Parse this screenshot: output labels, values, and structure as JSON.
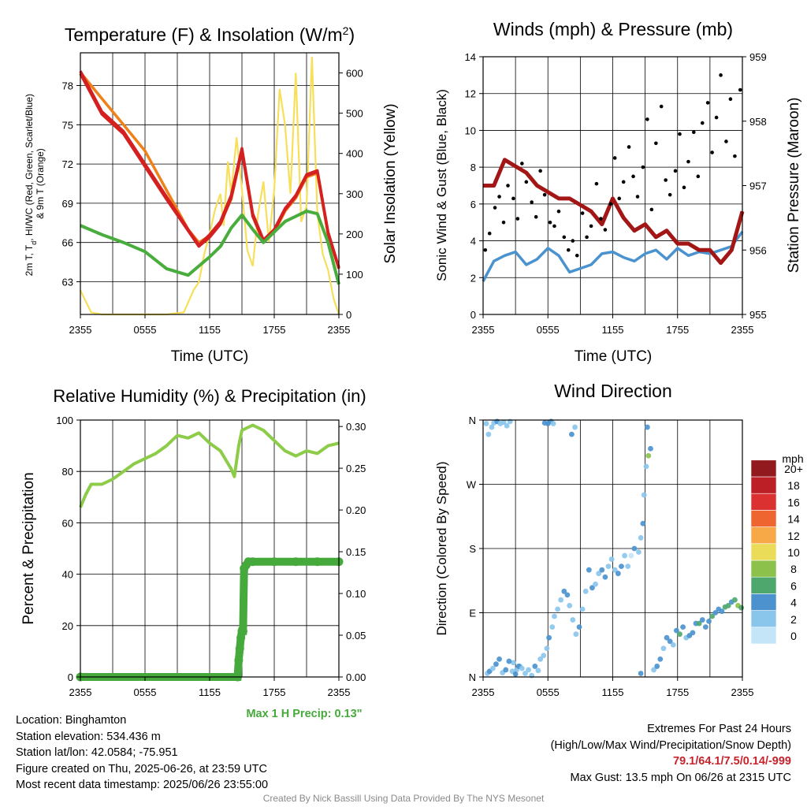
{
  "colors": {
    "temp": "#d42020",
    "heat_index": "#f08018",
    "dewpoint": "#48ad3c",
    "insolation": "#f7df5a",
    "wind": "#4a93cf",
    "gust": "#000000",
    "pressure": "#a31616",
    "rh": "#8ccc48",
    "precip": "#45a93c",
    "extremes": "#c8232c"
  },
  "info": {
    "location": "Location: Binghamton",
    "elevation": "Station elevation: 534.436 m",
    "latlon": "Station lat/lon: 42.0584; -75.951",
    "created": "Figure created on Thu, 2025-06-26, at 23:59 UTC",
    "recent": "Most recent data timestamp: 2025/06/26 23:55:00"
  },
  "extremes": {
    "title": "Extremes For Past 24 Hours",
    "subtitle": "(High/Low/Max Wind/Precipitation/Snow Depth)",
    "values": "79.1/64.1/7.5/0.14/-999",
    "max_gust": "Max Gust: 13.5 mph On 06/26 at 2315 UTC"
  },
  "credit": "Created By Nick Bassill Using Data Provided By The NYS Mesonet",
  "precip_note": "Max 1 H Precip: 0.13\"",
  "chart_data": [
    {
      "type": "line",
      "title": "Temperature (F) & Insolation (W/m2)",
      "xlabel": "Time (UTC)",
      "ylabel": "2m T, Td, HI/WC (Red, Green, Scarlet/Blue) & 9m T (Orange)",
      "y2label": "Solar Insolation (Yellow)",
      "xticks": [
        "2355",
        "0555",
        "1155",
        "1755",
        "2355"
      ],
      "x_hours": [
        0,
        2,
        4,
        6,
        8,
        10,
        11,
        12,
        13,
        14,
        15,
        16,
        17,
        18,
        19,
        20,
        21,
        22,
        23,
        24
      ],
      "ylim": [
        60.5,
        80.5
      ],
      "yticks": [
        63,
        66,
        69,
        72,
        75,
        78
      ],
      "y2lim": [
        0,
        650
      ],
      "y2ticks": [
        0,
        100,
        200,
        300,
        400,
        500,
        600
      ],
      "series": [
        {
          "name": "2m T",
          "values": [
            79.1,
            76.0,
            74.5,
            72.0,
            69.5,
            67.0,
            65.8,
            66.6,
            67.6,
            69.6,
            73.2,
            68.2,
            66.2,
            67.0,
            68.6,
            69.6,
            71.2,
            71.5,
            66.8,
            64.1
          ]
        },
        {
          "name": "9m T",
          "values": [
            79.0,
            77.0,
            75.0,
            73.0,
            70.0,
            67.0,
            66.0,
            66.5,
            67.5,
            69.3,
            73.0,
            68.0,
            66.0,
            66.8,
            68.4,
            69.4,
            71.0,
            71.3,
            66.6,
            64.0
          ]
        },
        {
          "name": "Heat Index",
          "values": [
            78.9,
            75.8,
            74.3,
            71.8,
            69.3,
            66.9,
            65.7,
            66.4,
            67.4,
            69.4,
            73.0,
            68.0,
            66.1,
            66.9,
            68.5,
            69.5,
            71.1,
            71.4,
            66.7,
            64.0
          ]
        },
        {
          "name": "Dewpoint",
          "values": [
            67.3,
            66.6,
            66.0,
            65.3,
            64.0,
            63.5,
            64.2,
            64.9,
            65.7,
            67.1,
            68.1,
            67.0,
            66.0,
            66.8,
            67.6,
            68.0,
            68.4,
            68.2,
            66.0,
            62.8
          ]
        }
      ],
      "insolation": {
        "x_hours": [
          0,
          1,
          2,
          4,
          8,
          9.6,
          10.5,
          11,
          11.5,
          12,
          12.5,
          13,
          13.3,
          13.7,
          14,
          14.5,
          15,
          15.5,
          16,
          16.5,
          17,
          17.5,
          18,
          18.5,
          19,
          19.5,
          20,
          20.5,
          21,
          21.5,
          22,
          22.5,
          23,
          23.5,
          24
        ],
        "values": [
          60,
          5,
          0,
          0,
          0,
          5,
          60,
          80,
          150,
          200,
          260,
          300,
          220,
          380,
          300,
          440,
          310,
          160,
          120,
          250,
          330,
          180,
          310,
          560,
          470,
          300,
          600,
          230,
          270,
          640,
          250,
          150,
          110,
          40,
          0
        ]
      }
    },
    {
      "type": "line",
      "title": "Winds (mph) & Pressure (mb)",
      "xlabel": "Time (UTC)",
      "ylabel": "Sonic Wind & Gust (Blue, Black)",
      "y2label": "Station Pressure (Maroon)",
      "xticks": [
        "2355",
        "0555",
        "1155",
        "1755",
        "2355"
      ],
      "ylim": [
        0,
        14
      ],
      "yticks": [
        0,
        2,
        4,
        6,
        8,
        10,
        12,
        14
      ],
      "y2lim": [
        955,
        959
      ],
      "y2ticks": [
        955,
        956,
        957,
        958,
        959
      ],
      "x_hours": [
        0,
        1,
        2,
        3,
        4,
        5,
        6,
        7,
        8,
        9,
        10,
        11,
        12,
        13,
        14,
        15,
        16,
        17,
        18,
        19,
        20,
        21,
        22,
        23,
        24
      ],
      "series": [
        {
          "name": "Sonic Wind",
          "values": [
            1.8,
            2.9,
            3.2,
            3.4,
            2.7,
            3.0,
            3.6,
            3.2,
            2.3,
            2.5,
            2.7,
            3.3,
            3.4,
            3.1,
            2.9,
            3.3,
            3.5,
            3.0,
            3.6,
            3.2,
            3.4,
            3.3,
            3.5,
            3.7,
            4.5
          ]
        },
        {
          "name": "Station Pressure",
          "values": [
            957.0,
            957.0,
            957.4,
            957.3,
            957.2,
            957.0,
            956.9,
            956.8,
            956.8,
            956.7,
            956.6,
            956.4,
            956.8,
            956.5,
            956.3,
            956.4,
            956.2,
            956.3,
            956.1,
            956.1,
            956.0,
            956.0,
            955.8,
            956.0,
            956.6
          ]
        }
      ],
      "gusts": {
        "x_hours": [
          0.2,
          0.6,
          1.1,
          1.5,
          1.9,
          2.3,
          2.8,
          3.2,
          3.6,
          4.0,
          4.5,
          4.9,
          5.3,
          5.7,
          6.2,
          6.6,
          7.0,
          7.5,
          7.9,
          8.3,
          8.7,
          9.2,
          9.6,
          10.0,
          10.5,
          10.9,
          11.3,
          11.8,
          12.2,
          12.6,
          13.0,
          13.5,
          13.9,
          14.3,
          14.8,
          15.2,
          15.6,
          16.0,
          16.5,
          16.9,
          17.3,
          17.8,
          18.2,
          18.6,
          19.0,
          19.5,
          19.9,
          20.3,
          20.8,
          21.2,
          21.6,
          22.0,
          22.5,
          22.9,
          23.3,
          23.8
        ],
        "values": [
          3.5,
          4.4,
          5.8,
          6.4,
          5.0,
          7.0,
          6.3,
          5.2,
          8.2,
          7.2,
          6.1,
          5.3,
          7.8,
          6.5,
          5.0,
          4.8,
          5.6,
          4.2,
          3.5,
          4.0,
          3.2,
          5.5,
          4.2,
          4.8,
          7.1,
          5.2,
          4.6,
          6.0,
          8.5,
          6.3,
          7.2,
          9.1,
          7.5,
          6.4,
          8.0,
          10.6,
          5.7,
          9.3,
          11.3,
          7.3,
          6.5,
          7.8,
          9.8,
          6.9,
          8.3,
          9.9,
          7.5,
          10.4,
          11.5,
          8.8,
          10.7,
          13.0,
          9.4,
          11.7,
          8.6,
          12.2
        ]
      }
    },
    {
      "type": "line",
      "title": "Relative Humidity (%) & Precipitation (in)",
      "xlabel": "",
      "ylabel": "Percent & Precipitation",
      "xticks": [
        "2355",
        "0555",
        "1155",
        "1755",
        "2355"
      ],
      "ylim": [
        0,
        100
      ],
      "yticks": [
        0,
        20,
        40,
        60,
        80,
        100
      ],
      "y2lim": [
        0,
        0.3077
      ],
      "y2ticks": [
        0.0,
        0.05,
        0.1,
        0.15,
        0.2,
        0.25,
        0.3
      ],
      "series": [
        {
          "name": "Relative Humidity",
          "x_hours": [
            0,
            0.5,
            1,
            2,
            3,
            4,
            5,
            6,
            7,
            8,
            9,
            10,
            11,
            12,
            13,
            14,
            14.3,
            14.7,
            15,
            16,
            17,
            18,
            19,
            20,
            21,
            22,
            23,
            24
          ],
          "values": [
            66,
            71,
            75,
            75,
            77,
            80,
            83,
            85,
            87,
            90,
            94,
            93,
            95,
            91,
            88,
            81,
            78,
            90,
            96,
            98,
            96,
            92,
            88,
            86,
            88,
            87,
            90,
            91
          ]
        },
        {
          "name": "Precipitation",
          "x_hours": [
            0,
            14.6,
            14.7,
            14.8,
            14.9,
            15.0,
            15.1,
            15.2,
            15.4,
            15.6,
            16,
            18,
            20,
            22,
            24
          ],
          "values": [
            0.0,
            0.0,
            0.02,
            0.034,
            0.047,
            0.055,
            0.055,
            0.13,
            0.134,
            0.138,
            0.138,
            0.138,
            0.138,
            0.138,
            0.138
          ]
        }
      ]
    },
    {
      "type": "scatter",
      "title": "Wind Direction",
      "ylabel": "Direction (Colored By Speed)",
      "xticks": [
        "2355",
        "0555",
        "1155",
        "1755",
        "2355"
      ],
      "yticks": [
        "N",
        "E",
        "S",
        "W",
        "N"
      ],
      "ylim": [
        0,
        360
      ],
      "legend_title": "mph",
      "legend_labels": [
        "0",
        "2",
        "4",
        "6",
        "8",
        "10",
        "12",
        "14",
        "16",
        "18",
        "20+"
      ],
      "legend_colors": [
        "#c4e5f7",
        "#8ac6ec",
        "#4b92cf",
        "#4ea86e",
        "#8cc24c",
        "#eadc58",
        "#f7a847",
        "#ee6530",
        "#dc3131",
        "#bc1f26",
        "#921a1e"
      ],
      "points": {
        "x_hours": [
          0.3,
          0.5,
          0.8,
          1.0,
          1.3,
          1.6,
          1.9,
          2.2,
          2.5,
          2.8,
          3.1,
          3.4,
          0.4,
          0.6,
          0.9,
          1.2,
          1.5,
          1.8,
          2.1,
          2.4,
          2.7,
          3.0,
          3.3,
          3.6,
          3.9,
          4.2,
          4.5,
          4.8,
          5.1,
          5.3,
          5.6,
          5.9,
          6.1,
          6.4,
          6.6,
          6.9,
          7.2,
          7.5,
          7.8,
          8.0,
          8.3,
          8.6,
          8.9,
          9.2,
          9.5,
          9.8,
          10.1,
          10.4,
          10.7,
          11.0,
          11.3,
          11.6,
          11.9,
          12.2,
          12.5,
          12.8,
          13.1,
          13.4,
          13.7,
          14.0,
          14.4,
          14.6,
          14.8,
          14.9,
          15.1,
          15.3,
          15.5,
          15.8,
          16.1,
          16.4,
          16.7,
          17.0,
          17.3,
          17.6,
          17.9,
          18.2,
          18.5,
          18.8,
          19.1,
          19.4,
          19.7,
          20.0,
          20.3,
          20.6,
          20.9,
          21.2,
          21.5,
          21.8,
          22.1,
          22.4,
          22.7,
          23.0,
          23.3,
          23.6,
          23.9,
          5.7,
          6.0,
          6.3,
          6.5,
          8.2,
          8.5,
          14.6,
          15.2
        ],
        "values": [
          355,
          340,
          350,
          356,
          358,
          355,
          357,
          352,
          358,
          20,
          10,
          15,
          5,
          8,
          12,
          18,
          25,
          6,
          10,
          22,
          8,
          4,
          15,
          12,
          5,
          10,
          2,
          15,
          9,
          25,
          30,
          40,
          55,
          70,
          85,
          95,
          108,
          120,
          115,
          100,
          80,
          60,
          70,
          95,
          120,
          150,
          125,
          130,
          145,
          150,
          140,
          155,
          165,
          150,
          145,
          155,
          170,
          155,
          170,
          180,
          175,
          195,
          215,
          255,
          295,
          310,
          320,
          10,
          15,
          25,
          40,
          55,
          50,
          45,
          65,
          60,
          70,
          55,
          58,
          62,
          75,
          75,
          80,
          70,
          78,
          85,
          90,
          95,
          92,
          98,
          100,
          105,
          108,
          100,
          97,
          356,
          355,
          358,
          355,
          340,
          350,
          5,
          350
        ],
        "speeds": [
          2,
          1,
          2,
          2,
          3,
          1,
          2,
          1,
          1,
          2,
          1,
          1,
          2,
          3,
          2,
          4,
          3,
          2,
          3,
          4,
          2,
          3,
          3,
          2,
          1,
          2,
          1,
          3,
          1,
          2,
          1,
          2,
          3,
          1,
          2,
          1,
          2,
          3,
          4,
          2,
          1,
          2,
          3,
          1,
          2,
          3,
          4,
          1,
          2,
          3,
          4,
          2,
          1,
          2,
          3,
          4,
          2,
          1,
          0,
          3,
          1,
          2,
          3,
          2,
          1,
          7,
          3,
          2,
          4,
          3,
          2,
          3,
          4,
          2,
          3,
          5,
          4,
          2,
          3,
          4,
          3,
          5,
          4,
          3,
          4,
          6,
          4,
          3,
          4,
          5,
          6,
          4,
          6,
          7,
          5,
          3,
          4,
          3,
          2,
          3,
          2,
          4,
          3
        ]
      }
    }
  ]
}
